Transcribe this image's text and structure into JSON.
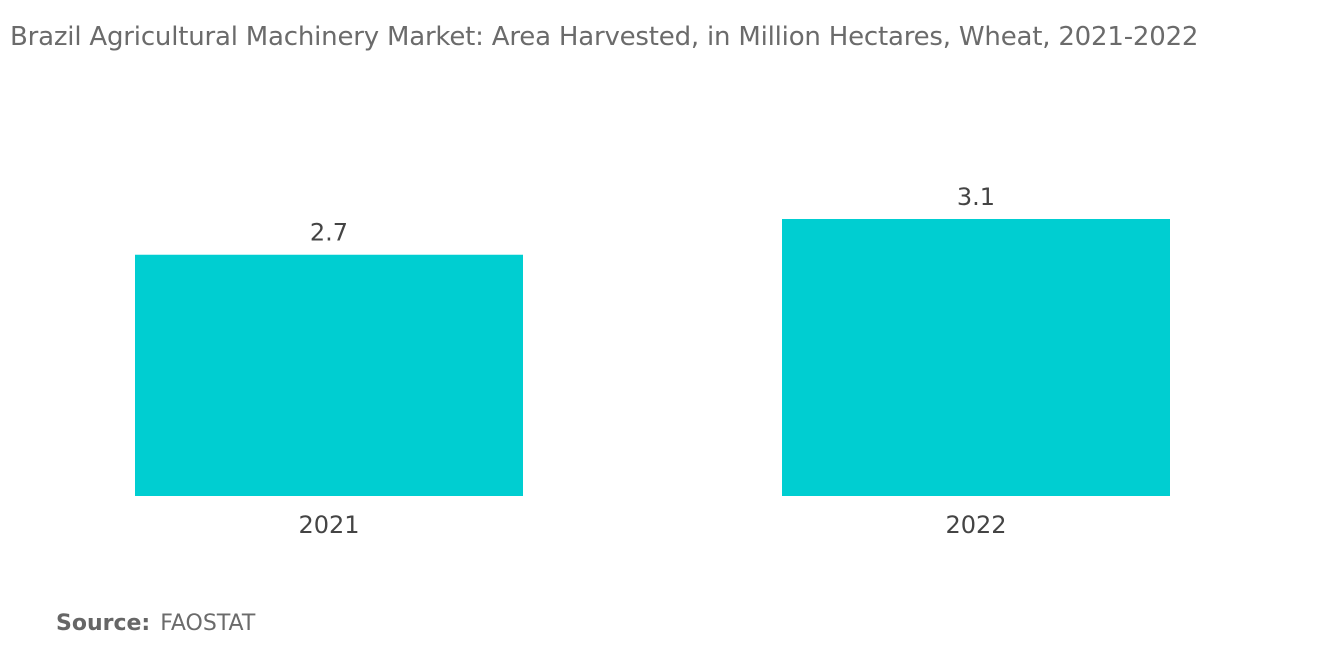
{
  "chart_data": {
    "type": "bar",
    "title": "Brazil Agricultural Machinery Market: Area Harvested, in Million Hectares, Wheat, 2021-2022",
    "categories": [
      "2021",
      "2022"
    ],
    "values": [
      2.7,
      3.1
    ],
    "data_labels": [
      "2.7",
      "3.1"
    ],
    "xlabel": "",
    "ylabel": "",
    "ylim": [
      0,
      3.1
    ],
    "grid": false,
    "legend": "none",
    "bar_color": "#00CED1"
  },
  "source": {
    "label": "Source:",
    "value": "FAOSTAT"
  }
}
